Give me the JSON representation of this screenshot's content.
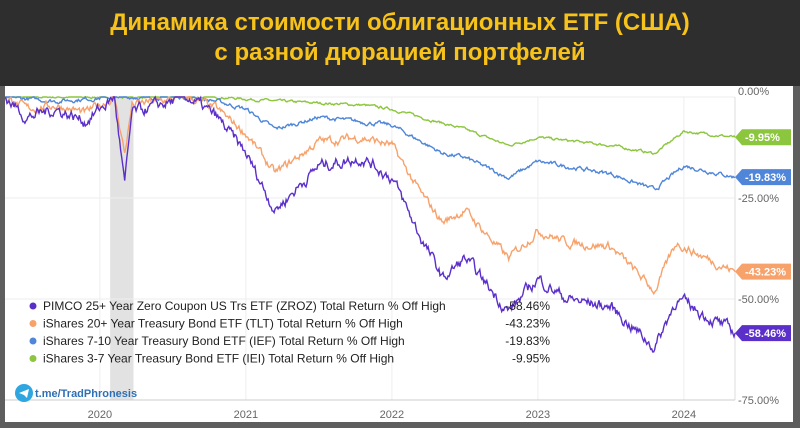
{
  "title_line1": "Динамика стоимости облигационных ETF (США)",
  "title_line2": "с разной дюрацией портфелей",
  "watermark": "t.me/TradPhronesis",
  "chart_data": {
    "type": "line",
    "title": "Динамика стоимости облигационных ETF (США) с разной дюрацией портфелей",
    "xlabel": "",
    "ylabel": "",
    "xlim": [
      2019.35,
      2024.35
    ],
    "ylim": [
      -75,
      0
    ],
    "x_ticks": [
      {
        "v": 2020,
        "label": "2020"
      },
      {
        "v": 2021,
        "label": "2021"
      },
      {
        "v": 2022,
        "label": "2022"
      },
      {
        "v": 2023,
        "label": "2023"
      },
      {
        "v": 2024,
        "label": "2024"
      }
    ],
    "y_ticks": [
      {
        "v": 0,
        "label": "0.00%"
      },
      {
        "v": -25,
        "label": "-25.00%"
      },
      {
        "v": -50,
        "label": "-50.00%"
      },
      {
        "v": -75,
        "label": "-75.00%"
      }
    ],
    "shaded_region": [
      2020.07,
      2020.23
    ],
    "legend_placement": "bottom-left",
    "series": [
      {
        "name": "PIMCO 25+ Year Zero Coupon US Trs ETF (ZROZ) Total Return % Off High",
        "last": "-58.46%",
        "color": "#5b2fc9",
        "noise": 2.2,
        "points": [
          [
            2019.35,
            0
          ],
          [
            2019.5,
            -5
          ],
          [
            2019.7,
            -3
          ],
          [
            2019.9,
            -6
          ],
          [
            2020.1,
            0
          ],
          [
            2020.17,
            -22
          ],
          [
            2020.22,
            -4
          ],
          [
            2020.6,
            0
          ],
          [
            2020.8,
            -5
          ],
          [
            2021.0,
            -14
          ],
          [
            2021.2,
            -28
          ],
          [
            2021.5,
            -17
          ],
          [
            2021.8,
            -15
          ],
          [
            2022.0,
            -20
          ],
          [
            2022.2,
            -35
          ],
          [
            2022.35,
            -45
          ],
          [
            2022.5,
            -40
          ],
          [
            2022.8,
            -53
          ],
          [
            2023.0,
            -45
          ],
          [
            2023.2,
            -50
          ],
          [
            2023.5,
            -52
          ],
          [
            2023.8,
            -62
          ],
          [
            2023.95,
            -50
          ],
          [
            2024.1,
            -53
          ],
          [
            2024.35,
            -58.46
          ]
        ]
      },
      {
        "name": "iShares 20+ Year Treasury Bond ETF (TLT) Total Return % Off High",
        "last": "-43.23%",
        "color": "#f7a26b",
        "noise": 1.6,
        "points": [
          [
            2019.35,
            0
          ],
          [
            2019.5,
            -3
          ],
          [
            2019.7,
            -2
          ],
          [
            2019.9,
            -4
          ],
          [
            2020.1,
            0
          ],
          [
            2020.17,
            -14
          ],
          [
            2020.22,
            -2
          ],
          [
            2020.6,
            0
          ],
          [
            2020.8,
            -3
          ],
          [
            2021.0,
            -9
          ],
          [
            2021.2,
            -19
          ],
          [
            2021.5,
            -11
          ],
          [
            2021.8,
            -10
          ],
          [
            2022.0,
            -12
          ],
          [
            2022.2,
            -24
          ],
          [
            2022.35,
            -31
          ],
          [
            2022.5,
            -28
          ],
          [
            2022.8,
            -40
          ],
          [
            2023.0,
            -33
          ],
          [
            2023.2,
            -36
          ],
          [
            2023.5,
            -37
          ],
          [
            2023.8,
            -48
          ],
          [
            2023.95,
            -36
          ],
          [
            2024.1,
            -39
          ],
          [
            2024.35,
            -43.23
          ]
        ]
      },
      {
        "name": "iShares 7-10 Year Treasury Bond ETF (IEF) Total Return % Off High",
        "last": "-19.83%",
        "color": "#4f86d9",
        "noise": 0.8,
        "points": [
          [
            2019.35,
            0
          ],
          [
            2019.7,
            -1
          ],
          [
            2020.1,
            0
          ],
          [
            2020.6,
            0
          ],
          [
            2020.8,
            -1
          ],
          [
            2021.0,
            -3
          ],
          [
            2021.2,
            -8
          ],
          [
            2021.5,
            -5
          ],
          [
            2022.0,
            -7
          ],
          [
            2022.35,
            -14
          ],
          [
            2022.5,
            -15
          ],
          [
            2022.8,
            -20
          ],
          [
            2023.0,
            -16
          ],
          [
            2023.5,
            -19
          ],
          [
            2023.8,
            -23
          ],
          [
            2024.0,
            -17
          ],
          [
            2024.35,
            -19.83
          ]
        ]
      },
      {
        "name": "iShares 3-7 Year Treasury Bond ETF (IEI) Total Return % Off High",
        "last": "-9.95%",
        "color": "#8cc63f",
        "noise": 0.5,
        "points": [
          [
            2019.35,
            0
          ],
          [
            2020.1,
            0
          ],
          [
            2020.8,
            0
          ],
          [
            2021.2,
            -1
          ],
          [
            2021.8,
            -2
          ],
          [
            2022.0,
            -3
          ],
          [
            2022.5,
            -8
          ],
          [
            2022.8,
            -12
          ],
          [
            2023.0,
            -10
          ],
          [
            2023.5,
            -12
          ],
          [
            2023.8,
            -14
          ],
          [
            2024.0,
            -8.5
          ],
          [
            2024.35,
            -9.95
          ]
        ]
      }
    ]
  }
}
